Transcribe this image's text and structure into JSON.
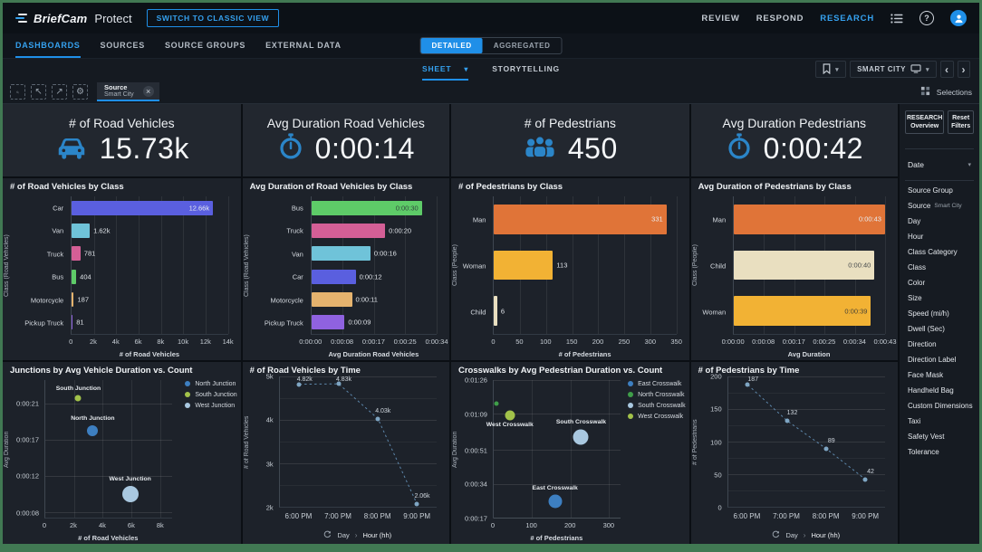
{
  "topbar": {
    "brand": "BriefCam",
    "product": "Protect",
    "classic_btn": "SWITCH TO CLASSIC VIEW",
    "nav": [
      {
        "label": "REVIEW",
        "active": false
      },
      {
        "label": "RESPOND",
        "active": false
      },
      {
        "label": "RESEARCH",
        "active": true
      }
    ]
  },
  "tabsbar": {
    "tabs": [
      {
        "label": "DASHBOARDS",
        "active": true
      },
      {
        "label": "SOURCES",
        "active": false
      },
      {
        "label": "SOURCE GROUPS",
        "active": false
      },
      {
        "label": "EXTERNAL DATA",
        "active": false
      }
    ],
    "view_toggle": [
      {
        "label": "DETAILED",
        "active": true
      },
      {
        "label": "AGGREGATED",
        "active": false
      }
    ]
  },
  "sheetbar": {
    "sheet_tab": "SHEET",
    "storytelling_tab": "STORYTELLING",
    "dashboard_selector": "SMART CITY"
  },
  "filterbar": {
    "chip": {
      "label": "Source",
      "value": "Smart City"
    },
    "selections_label": "Selections"
  },
  "kpis": [
    {
      "title": "# of Road Vehicles",
      "value": "15.73k",
      "icon": "car"
    },
    {
      "title": "Avg Duration Road Vehicles",
      "value": "0:00:14",
      "icon": "stopwatch"
    },
    {
      "title": "# of Pedestrians",
      "value": "450",
      "icon": "people"
    },
    {
      "title": "Avg Duration Pedestrians",
      "value": "0:00:42",
      "icon": "stopwatch"
    }
  ],
  "sidebar": {
    "overview_line1": "RESEARCH",
    "overview_line2": "Overview",
    "reset_btn": "Reset Filters",
    "date_label": "Date",
    "filters": [
      {
        "label": "Source Group"
      },
      {
        "label": "Source",
        "value": "Smart City"
      },
      {
        "label": "Day"
      },
      {
        "label": "Hour"
      },
      {
        "label": "Class Category"
      },
      {
        "label": "Class"
      },
      {
        "label": "Color"
      },
      {
        "label": "Size"
      },
      {
        "label": "Speed (mi/h)"
      },
      {
        "label": "Dwell (Sec)"
      },
      {
        "label": "Direction"
      },
      {
        "label": "Direction Label"
      },
      {
        "label": "Face Mask"
      },
      {
        "label": "Handheld Bag"
      },
      {
        "label": "Custom Dimensions"
      },
      {
        "label": "Taxi"
      },
      {
        "label": "Safety Vest"
      },
      {
        "label": "Tolerance"
      }
    ]
  },
  "colors": {
    "accent": "#1f8fe8",
    "kpi_icon": "#2b85c8",
    "frame": "#417953"
  },
  "chart_data": [
    {
      "type": "bar",
      "title": "# of Road Vehicles by Class",
      "xlabel": "# of Road Vehicles",
      "ylabel": "Class (Road Vehicles)",
      "categories": [
        "Car",
        "Van",
        "Truck",
        "Bus",
        "Motorcycle",
        "Pickup Truck"
      ],
      "values": [
        12660,
        1620,
        781,
        404,
        187,
        81
      ],
      "value_labels": [
        "12.66k",
        "1.62k",
        "781",
        "404",
        "187",
        "81"
      ],
      "colors": [
        "#5a5fdf",
        "#6fc3d9",
        "#d45f96",
        "#5ecb68",
        "#e5b36e",
        "#8f62e0"
      ],
      "xlim": [
        0,
        14000
      ],
      "x_ticks": [
        {
          "v": 0,
          "l": "0"
        },
        {
          "v": 2000,
          "l": "2k"
        },
        {
          "v": 4000,
          "l": "4k"
        },
        {
          "v": 6000,
          "l": "6k"
        },
        {
          "v": 8000,
          "l": "8k"
        },
        {
          "v": 10000,
          "l": "10k"
        },
        {
          "v": 12000,
          "l": "12k"
        },
        {
          "v": 14000,
          "l": "14k"
        }
      ]
    },
    {
      "type": "bar",
      "title": "Avg Duration of Road Vehicles by Class",
      "xlabel": "Avg Duration Road Vehicles",
      "ylabel": "Class (Road Vehicles)",
      "categories": [
        "Bus",
        "Truck",
        "Van",
        "Car",
        "Motorcycle",
        "Pickup Truck"
      ],
      "values": [
        30,
        20,
        16,
        12,
        11,
        9
      ],
      "value_labels": [
        "0:00:30",
        "0:00:20",
        "0:00:16",
        "0:00:12",
        "0:00:11",
        "0:00:09"
      ],
      "colors": [
        "#5ecb68",
        "#d45f96",
        "#6fc3d9",
        "#5a5fdf",
        "#e5b36e",
        "#8f62e0"
      ],
      "xlim": [
        0,
        34
      ],
      "x_ticks": [
        {
          "v": 0,
          "l": "0:00:00"
        },
        {
          "v": 8.5,
          "l": "0:00:08"
        },
        {
          "v": 17,
          "l": "0:00:17"
        },
        {
          "v": 25.5,
          "l": "0:00:25"
        },
        {
          "v": 34,
          "l": "0:00:34"
        }
      ]
    },
    {
      "type": "bar",
      "title": "# of Pedestrians by Class",
      "xlabel": "# of Pedestrians",
      "ylabel": "Class (People)",
      "categories": [
        "Man",
        "Woman",
        "Child"
      ],
      "values": [
        331,
        113,
        6
      ],
      "value_labels": [
        "331",
        "113",
        "6"
      ],
      "colors": [
        "#e07438",
        "#f2b234",
        "#e9dfc0"
      ],
      "xlim": [
        0,
        350
      ],
      "x_ticks": [
        {
          "v": 0,
          "l": "0"
        },
        {
          "v": 50,
          "l": "50"
        },
        {
          "v": 100,
          "l": "100"
        },
        {
          "v": 150,
          "l": "150"
        },
        {
          "v": 200,
          "l": "200"
        },
        {
          "v": 250,
          "l": "250"
        },
        {
          "v": 300,
          "l": "300"
        },
        {
          "v": 350,
          "l": "350"
        }
      ]
    },
    {
      "type": "bar",
      "title": "Avg Duration of Pedestrians by Class",
      "xlabel": "Avg Duration",
      "ylabel": "Class (People)",
      "categories": [
        "Man",
        "Child",
        "Woman"
      ],
      "values": [
        43,
        40,
        39
      ],
      "value_labels": [
        "0:00:43",
        "0:00:40",
        "0:00:39"
      ],
      "colors": [
        "#e07438",
        "#e9dfc0",
        "#f2b234"
      ],
      "xlim": [
        0,
        43
      ],
      "x_ticks": [
        {
          "v": 0,
          "l": "0:00:00"
        },
        {
          "v": 8.6,
          "l": "0:00:08"
        },
        {
          "v": 17.2,
          "l": "0:00:17"
        },
        {
          "v": 25.8,
          "l": "0:00:25"
        },
        {
          "v": 34.4,
          "l": "0:00:34"
        },
        {
          "v": 43,
          "l": "0:00:43"
        }
      ]
    },
    {
      "type": "scatter",
      "title": "Junctions by Avg Vehicle Duration vs. Count",
      "xlabel": "# of Road Vehicles",
      "ylabel": "Avg Duration",
      "xlim": [
        0,
        8800
      ],
      "ylim": [
        7.3,
        23.8
      ],
      "x_ticks": [
        {
          "v": 0,
          "l": "0"
        },
        {
          "v": 2000,
          "l": "2k"
        },
        {
          "v": 4000,
          "l": "4k"
        },
        {
          "v": 6000,
          "l": "6k"
        },
        {
          "v": 8000,
          "l": "8k"
        }
      ],
      "y_ticks": [
        {
          "v": 8,
          "l": "0:00:08"
        },
        {
          "v": 12.33,
          "l": "0:00:12"
        },
        {
          "v": 16.67,
          "l": "0:00:17"
        },
        {
          "v": 21,
          "l": "0:00:21"
        }
      ],
      "legend": [
        {
          "label": "North Junction",
          "color": "#3d7fc1"
        },
        {
          "label": "South Junction",
          "color": "#a2c24a"
        },
        {
          "label": "West Junction",
          "color": "#a9c8e0"
        }
      ],
      "points": [
        {
          "label": "South Junction",
          "x": 2300,
          "y": 21.6,
          "r": 3.5,
          "color": "#a2c24a"
        },
        {
          "label": "North Junction",
          "x": 3300,
          "y": 17.7,
          "r": 6,
          "color": "#3d7fc1"
        },
        {
          "label": "West Junction",
          "x": 5900,
          "y": 10.1,
          "r": 9,
          "color": "#a9c8e0"
        }
      ]
    },
    {
      "type": "line",
      "title": "# of Road Vehicles by Time",
      "ylabel": "# of Road Vehicles",
      "categories": [
        "6:00 PM",
        "7:00 PM",
        "8:00 PM",
        "9:00 PM"
      ],
      "values": [
        4820,
        4830,
        4030,
        2060
      ],
      "value_labels": [
        "4.82k",
        "4.83k",
        "4.03k",
        "2.06k"
      ],
      "ylim": [
        2000,
        5000
      ],
      "y_ticks": [
        {
          "v": 2000,
          "l": "2k"
        },
        {
          "v": 3000,
          "l": "3k"
        },
        {
          "v": 4000,
          "l": "4k"
        },
        {
          "v": 5000,
          "l": "5k"
        }
      ],
      "y_minor": [
        2500,
        3500,
        4500
      ],
      "line_color": "#5d87ab",
      "drill": {
        "group": "Day",
        "field": "Hour (hh)"
      }
    },
    {
      "type": "scatter",
      "title": "Crosswalks by Avg Pedestrian Duration vs. Count",
      "xlabel": "# of Pedestrians",
      "ylabel": "Avg Duration",
      "xlim": [
        0,
        330
      ],
      "ylim": [
        17,
        86
      ],
      "x_ticks": [
        {
          "v": 0,
          "l": "0"
        },
        {
          "v": 100,
          "l": "100"
        },
        {
          "v": 200,
          "l": "200"
        },
        {
          "v": 300,
          "l": "300"
        }
      ],
      "y_ticks": [
        {
          "v": 17,
          "l": "0:00:17"
        },
        {
          "v": 34,
          "l": "0:00:34"
        },
        {
          "v": 51,
          "l": "0:00:51"
        },
        {
          "v": 69,
          "l": "0:01:09"
        },
        {
          "v": 86,
          "l": "0:01:26"
        }
      ],
      "legend": [
        {
          "label": "East Crosswalk",
          "color": "#3d7fc1"
        },
        {
          "label": "North Crosswalk",
          "color": "#3f9e49"
        },
        {
          "label": "South Crosswalk",
          "color": "#a9c8e0"
        },
        {
          "label": "West Crosswalk",
          "color": "#a2c24a"
        }
      ],
      "points": [
        {
          "label": "North Crosswalk",
          "show_label": false,
          "x": 6,
          "y": 74,
          "r": 2.5,
          "color": "#3f9e49"
        },
        {
          "label": "West Crosswalk",
          "label_below": true,
          "x": 42,
          "y": 68.5,
          "r": 5.5,
          "color": "#a2c24a"
        },
        {
          "label": "South Crosswalk",
          "x": 228,
          "y": 57.5,
          "r": 8.5,
          "color": "#a9c8e0"
        },
        {
          "label": "East Crosswalk",
          "x": 160,
          "y": 25,
          "r": 7.5,
          "color": "#3d7fc1"
        }
      ]
    },
    {
      "type": "line",
      "title": "# of Pedestrians by Time",
      "ylabel": "# of Pedestrians",
      "categories": [
        "6:00 PM",
        "7:00 PM",
        "8:00 PM",
        "9:00 PM"
      ],
      "values": [
        187,
        132,
        89,
        42
      ],
      "value_labels": [
        "187",
        "132",
        "89",
        "42"
      ],
      "ylim": [
        0,
        200
      ],
      "y_ticks": [
        {
          "v": 0,
          "l": "0"
        },
        {
          "v": 50,
          "l": "50"
        },
        {
          "v": 100,
          "l": "100"
        },
        {
          "v": 150,
          "l": "150"
        },
        {
          "v": 200,
          "l": "200"
        }
      ],
      "y_minor": [
        25,
        75,
        125,
        175
      ],
      "line_color": "#5d87ab",
      "drill": {
        "group": "Day",
        "field": "Hour (hh)"
      }
    }
  ]
}
